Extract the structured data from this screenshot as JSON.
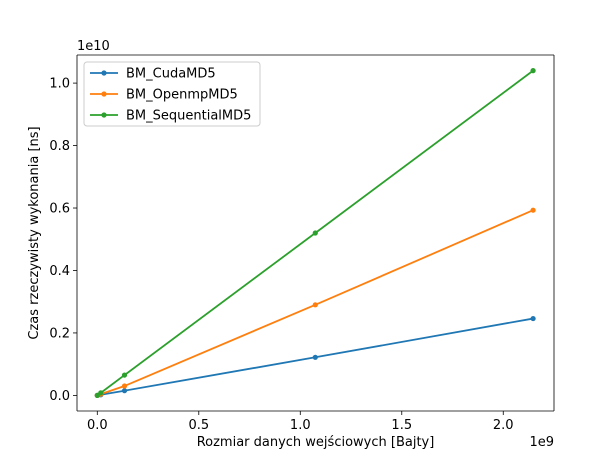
{
  "chart_data": {
    "type": "line",
    "xlabel": "Rozmiar danych wejściowych [Bajty]",
    "ylabel": "Czas rzeczywisty wykonania [ns]",
    "x_multiplier_label": "1e9",
    "y_multiplier_label": "1e10",
    "xlim": [
      -0.1,
      2.25
    ],
    "ylim": [
      -0.05,
      1.09
    ],
    "x_ticks": [
      0.0,
      0.5,
      1.0,
      1.5,
      2.0
    ],
    "x_tick_labels": [
      "0.0",
      "0.5",
      "1.0",
      "1.5",
      "2.0"
    ],
    "y_ticks": [
      0.0,
      0.2,
      0.4,
      0.6,
      0.8,
      1.0
    ],
    "y_tick_labels": [
      "0.0",
      "0.2",
      "0.4",
      "0.6",
      "0.8",
      "1.0"
    ],
    "grid": false,
    "legend_position": "top-left",
    "series": [
      {
        "name": "BM_CudaMD5",
        "color": "#1f77b4",
        "points": [
          [
            0.0,
            0.0
          ],
          [
            0.017,
            0.002
          ],
          [
            0.134,
            0.015
          ],
          [
            1.074,
            0.122
          ],
          [
            2.147,
            0.246
          ]
        ]
      },
      {
        "name": "BM_OpenmpMD5",
        "color": "#ff7f0e",
        "points": [
          [
            0.0,
            0.0
          ],
          [
            0.017,
            0.004
          ],
          [
            0.134,
            0.03
          ],
          [
            1.074,
            0.29
          ],
          [
            2.147,
            0.593
          ]
        ]
      },
      {
        "name": "BM_SequentialMD5",
        "color": "#2ca02c",
        "points": [
          [
            0.0,
            0.0
          ],
          [
            0.017,
            0.008
          ],
          [
            0.134,
            0.065
          ],
          [
            1.074,
            0.52
          ],
          [
            2.147,
            1.04
          ]
        ]
      }
    ]
  }
}
